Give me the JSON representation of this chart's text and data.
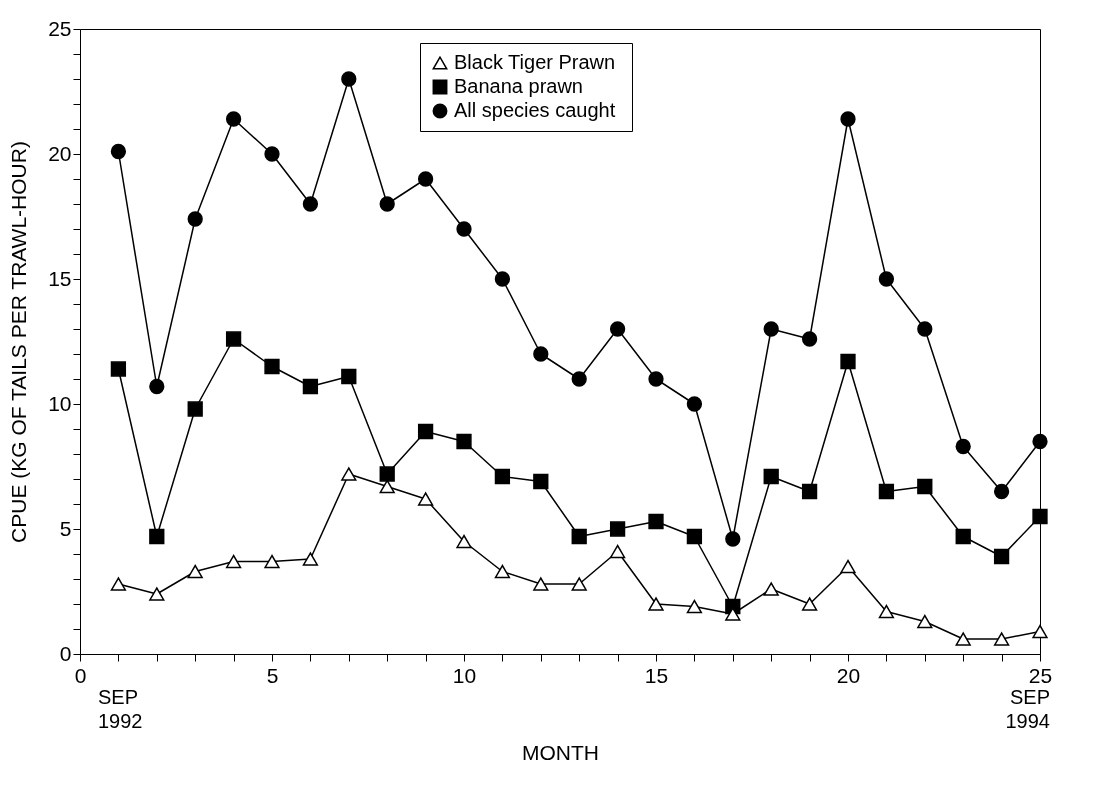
{
  "chart_data": {
    "type": "line",
    "xlabel": "MONTH",
    "ylabel": "CPUE (KG OF TAILS PER TRAWL-HOUR)",
    "x": [
      1,
      2,
      3,
      4,
      5,
      6,
      7,
      8,
      9,
      10,
      11,
      12,
      13,
      14,
      15,
      16,
      17,
      18,
      19,
      20,
      21,
      22,
      23,
      24,
      25
    ],
    "series": [
      {
        "name": "Black  Tiger Prawn",
        "color": "#000000",
        "marker": "triangle",
        "values": [
          2.8,
          2.4,
          3.3,
          3.7,
          3.7,
          3.8,
          7.2,
          6.7,
          6.2,
          4.5,
          3.3,
          2.8,
          2.8,
          4.1,
          2.0,
          1.9,
          1.6,
          2.6,
          2.0,
          3.5,
          1.7,
          1.3,
          0.6,
          0.6,
          0.9
        ]
      },
      {
        "name": "Banana prawn",
        "color": "#000000",
        "marker": "square",
        "values": [
          11.4,
          4.7,
          9.8,
          12.6,
          11.5,
          10.7,
          11.1,
          7.2,
          8.9,
          8.5,
          7.1,
          6.9,
          4.7,
          5.0,
          5.3,
          4.7,
          1.9,
          7.1,
          6.5,
          11.7,
          6.5,
          6.7,
          4.7,
          3.9,
          5.5
        ]
      },
      {
        "name": "All species caught",
        "color": "#000000",
        "marker": "circle",
        "values": [
          20.1,
          10.7,
          17.4,
          21.4,
          20.0,
          18.0,
          23.0,
          18.0,
          19.0,
          17.0,
          15.0,
          12.0,
          11.0,
          13.0,
          11.0,
          10.0,
          4.6,
          13.0,
          12.6,
          21.4,
          15.0,
          13.0,
          8.3,
          6.5,
          8.5
        ]
      }
    ],
    "xlim": [
      0,
      25
    ],
    "ylim": [
      0,
      25
    ],
    "xticks": [
      0,
      {
        "value": 1,
        "label": null
      },
      {
        "value": 2,
        "label": null
      },
      {
        "value": 3,
        "label": null
      },
      {
        "value": 4,
        "label": null
      },
      5,
      {
        "value": 6,
        "label": null
      },
      {
        "value": 7,
        "label": null
      },
      {
        "value": 8,
        "label": null
      },
      {
        "value": 9,
        "label": null
      },
      10,
      {
        "value": 11,
        "label": null
      },
      {
        "value": 12,
        "label": null
      },
      {
        "value": 13,
        "label": null
      },
      {
        "value": 14,
        "label": null
      },
      15,
      {
        "value": 16,
        "label": null
      },
      {
        "value": 17,
        "label": null
      },
      {
        "value": 18,
        "label": null
      },
      {
        "value": 19,
        "label": null
      },
      20,
      {
        "value": 21,
        "label": null
      },
      {
        "value": 22,
        "label": null
      },
      {
        "value": 23,
        "label": null
      },
      {
        "value": 24,
        "label": null
      },
      25
    ],
    "yticks": [
      0,
      {
        "value": 1,
        "label": null
      },
      {
        "value": 2,
        "label": null
      },
      {
        "value": 3,
        "label": null
      },
      {
        "value": 4,
        "label": null
      },
      5,
      {
        "value": 6,
        "label": null
      },
      {
        "value": 7,
        "label": null
      },
      {
        "value": 8,
        "label": null
      },
      {
        "value": 9,
        "label": null
      },
      10,
      {
        "value": 11,
        "label": null
      },
      {
        "value": 12,
        "label": null
      },
      {
        "value": 13,
        "label": null
      },
      {
        "value": 14,
        "label": null
      },
      15,
      {
        "value": 16,
        "label": null
      },
      {
        "value": 17,
        "label": null
      },
      {
        "value": 18,
        "label": null
      },
      {
        "value": 19,
        "label": null
      },
      20,
      {
        "value": 21,
        "label": null
      },
      {
        "value": 22,
        "label": null
      },
      {
        "value": 23,
        "label": null
      },
      {
        "value": 24,
        "label": null
      },
      25
    ],
    "annotations": [
      "SEP 1992",
      "SEP 1994"
    ],
    "grid": false,
    "legend": "top",
    "line_style": "solid"
  }
}
